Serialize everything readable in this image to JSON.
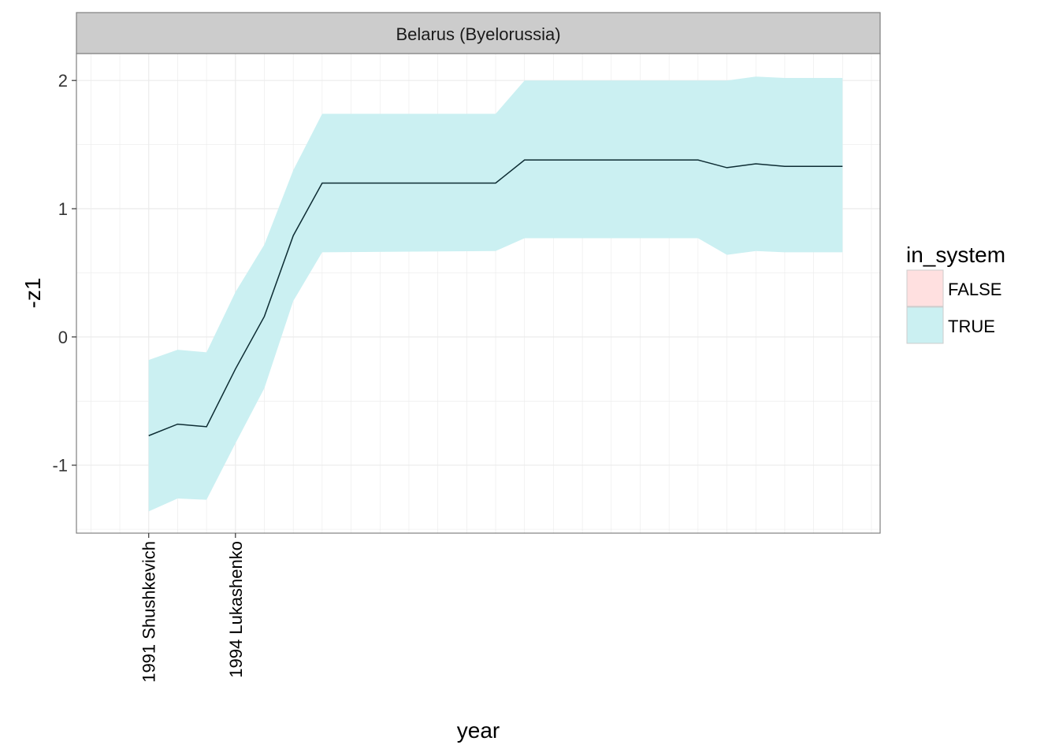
{
  "chart_data": {
    "type": "area",
    "facet_title": "Belarus (Byelorussia)",
    "xlabel": "year",
    "ylabel": "-z1",
    "ylim": [
      -1.53,
      2.21
    ],
    "xlim": [
      1988.5,
      2016.3
    ],
    "y_ticks": [
      -1,
      0,
      1,
      2
    ],
    "y_tick_labels": [
      "-1",
      "0",
      "1",
      "2"
    ],
    "x_ticks": [
      1991,
      1994
    ],
    "x_tick_labels": [
      "1991 Shushkevich",
      "1994 Lukashenko"
    ],
    "grid": true,
    "series": [
      {
        "name": "TRUE",
        "x": [
          1991,
          1992,
          1993,
          1994,
          1995,
          1996,
          1997,
          2003,
          2004,
          2010,
          2011,
          2012,
          2013,
          2015
        ],
        "y": [
          -0.77,
          -0.68,
          -0.7,
          -0.25,
          0.16,
          0.79,
          1.2,
          1.2,
          1.38,
          1.38,
          1.32,
          1.35,
          1.33,
          1.33
        ],
        "ymin": [
          -1.36,
          -1.26,
          -1.27,
          -0.83,
          -0.4,
          0.28,
          0.66,
          0.67,
          0.77,
          0.77,
          0.64,
          0.67,
          0.66,
          0.66
        ],
        "ymax": [
          -0.18,
          -0.1,
          -0.12,
          0.35,
          0.72,
          1.3,
          1.74,
          1.74,
          2.0,
          2.0,
          2.0,
          2.03,
          2.02,
          2.02
        ]
      }
    ],
    "legend": {
      "title": "in_system",
      "position": "right",
      "entries": [
        {
          "label": "FALSE",
          "color": "#ffe0e0"
        },
        {
          "label": "TRUE",
          "color": "#cbf0f2"
        }
      ]
    }
  },
  "colors": {
    "ribbon": "#cbf0f2",
    "line": "#0d2c33",
    "strip_bg": "#cccccc",
    "grid": "#ebebeb",
    "panel_border": "#808080"
  }
}
